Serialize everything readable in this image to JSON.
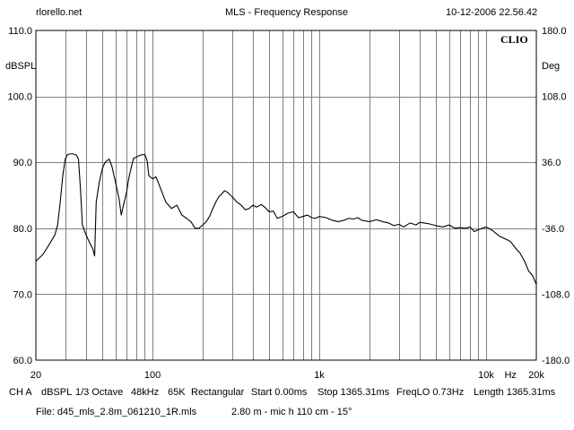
{
  "header": {
    "site": "rlorello.net",
    "title": "MLS - Frequency Response",
    "datetime": "10-12-2006 22.56.42"
  },
  "brand": "CLIO",
  "chart_data": {
    "type": "line",
    "title": "MLS - Frequency Response",
    "ylabel": "dBSPL",
    "ylabel_right": "Deg",
    "xlabel": "Hz",
    "x_scale": "log",
    "xlim": [
      20,
      20000
    ],
    "ylim": [
      60,
      110
    ],
    "ylim_right": [
      -180,
      180
    ],
    "grid": true,
    "y_ticks": [
      "110.0",
      "100.0",
      "90.0",
      "80.0",
      "70.0",
      "60.0"
    ],
    "y_ticks_right": [
      "180.0",
      "108.0",
      "36.0",
      "-36.0",
      "-108.0",
      "-180.0"
    ],
    "x_tick_labels": [
      {
        "value": 20,
        "label": "20"
      },
      {
        "value": 100,
        "label": "100"
      },
      {
        "value": 1000,
        "label": "1k"
      },
      {
        "value": 10000,
        "label": "10k"
      },
      {
        "value": 20000,
        "label": "20k"
      }
    ],
    "series": [
      {
        "points": [
          [
            20,
            75.0
          ],
          [
            22,
            76.0
          ],
          [
            24,
            77.5
          ],
          [
            26,
            79.0
          ],
          [
            27,
            80.5
          ],
          [
            28,
            84
          ],
          [
            29,
            88
          ],
          [
            30,
            90.5
          ],
          [
            31,
            91.2
          ],
          [
            33,
            91.3
          ],
          [
            35,
            91.1
          ],
          [
            36,
            90.5
          ],
          [
            37,
            86
          ],
          [
            38,
            80.5
          ],
          [
            40,
            79
          ],
          [
            42,
            77.8
          ],
          [
            44,
            76.8
          ],
          [
            45,
            75.8
          ],
          [
            46,
            84
          ],
          [
            48,
            87
          ],
          [
            50,
            89
          ],
          [
            52,
            90
          ],
          [
            55,
            90.5
          ],
          [
            57,
            89.5
          ],
          [
            60,
            87
          ],
          [
            63,
            84.5
          ],
          [
            65,
            82
          ],
          [
            67,
            83.5
          ],
          [
            70,
            85.5
          ],
          [
            72,
            87.5
          ],
          [
            75,
            89.5
          ],
          [
            77,
            90.6
          ],
          [
            80,
            90.8
          ],
          [
            85,
            91.1
          ],
          [
            90,
            91.2
          ],
          [
            93,
            90.2
          ],
          [
            95,
            88
          ],
          [
            100,
            87.5
          ],
          [
            105,
            87.8
          ],
          [
            110,
            86.5
          ],
          [
            120,
            84
          ],
          [
            130,
            83
          ],
          [
            140,
            83.5
          ],
          [
            150,
            82
          ],
          [
            160,
            81.5
          ],
          [
            170,
            81
          ],
          [
            180,
            80
          ],
          [
            190,
            80
          ],
          [
            200,
            80.5
          ],
          [
            210,
            81
          ],
          [
            220,
            81.8
          ],
          [
            230,
            83
          ],
          [
            240,
            84
          ],
          [
            250,
            84.8
          ],
          [
            260,
            85.2
          ],
          [
            270,
            85.7
          ],
          [
            280,
            85.5
          ],
          [
            300,
            84.8
          ],
          [
            320,
            84
          ],
          [
            340,
            83.5
          ],
          [
            360,
            82.8
          ],
          [
            380,
            83
          ],
          [
            400,
            83.5
          ],
          [
            420,
            83.2
          ],
          [
            450,
            83.6
          ],
          [
            480,
            83
          ],
          [
            500,
            82.5
          ],
          [
            530,
            82.6
          ],
          [
            560,
            81.5
          ],
          [
            600,
            81.8
          ],
          [
            650,
            82.3
          ],
          [
            700,
            82.5
          ],
          [
            750,
            81.6
          ],
          [
            800,
            81.8
          ],
          [
            850,
            82
          ],
          [
            900,
            81.6
          ],
          [
            950,
            81.5
          ],
          [
            1000,
            81.8
          ],
          [
            1100,
            81.6
          ],
          [
            1200,
            81.2
          ],
          [
            1300,
            81
          ],
          [
            1400,
            81.2
          ],
          [
            1500,
            81.5
          ],
          [
            1600,
            81.4
          ],
          [
            1700,
            81.6
          ],
          [
            1800,
            81.2
          ],
          [
            2000,
            81
          ],
          [
            2200,
            81.3
          ],
          [
            2400,
            81
          ],
          [
            2600,
            80.8
          ],
          [
            2800,
            80.4
          ],
          [
            3000,
            80.6
          ],
          [
            3200,
            80.2
          ],
          [
            3500,
            80.8
          ],
          [
            3800,
            80.5
          ],
          [
            4000,
            80.9
          ],
          [
            4500,
            80.7
          ],
          [
            5000,
            80.4
          ],
          [
            5500,
            80.2
          ],
          [
            6000,
            80.5
          ],
          [
            6500,
            80
          ],
          [
            7000,
            80.1
          ],
          [
            7500,
            80
          ],
          [
            8000,
            80.2
          ],
          [
            8500,
            79.5
          ],
          [
            9000,
            79.8
          ],
          [
            9500,
            80
          ],
          [
            10000,
            80.2
          ],
          [
            10500,
            79.9
          ],
          [
            11000,
            79.6
          ],
          [
            11500,
            79.2
          ],
          [
            12000,
            78.8
          ],
          [
            13000,
            78.4
          ],
          [
            14000,
            78
          ],
          [
            15000,
            77
          ],
          [
            16000,
            76.2
          ],
          [
            17000,
            75
          ],
          [
            18000,
            73.5
          ],
          [
            19000,
            72.8
          ],
          [
            20000,
            71.5
          ]
        ]
      }
    ]
  },
  "footer": {
    "line1": [
      "CH A",
      "dBSPL",
      "1/3 Octave",
      "48kHz",
      "65K",
      "Rectangular",
      "Start 0.00ms",
      "Stop 1365.31ms",
      "FreqLO 0.73Hz",
      "Length 1365.31ms"
    ],
    "file": "File: d45_mls_2.8m_061210_1R.mls",
    "note": "2.80 m - mic h 110 cm - 15°"
  }
}
